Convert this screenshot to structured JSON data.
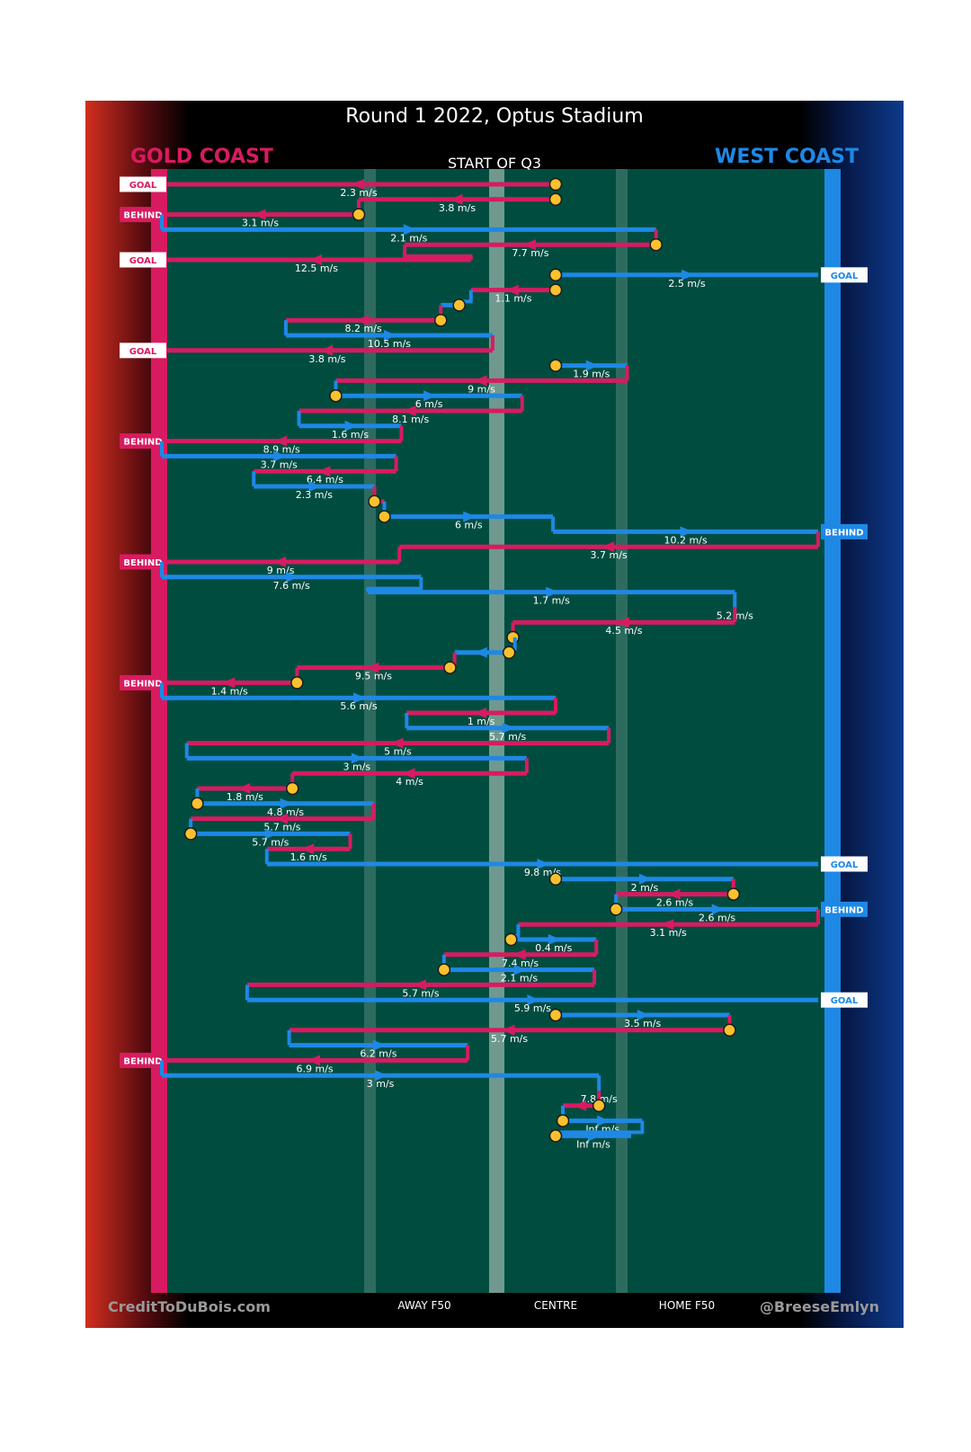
{
  "header": {
    "title": "Round 1 2022, Optus Stadium",
    "subtitle": "START OF Q3",
    "left_team": "GOLD COAST",
    "right_team": "WEST COAST"
  },
  "footer": {
    "credit": "CreditToDuBois.com",
    "handle": "@BreeseEmlyn"
  },
  "colors": {
    "gold_coast": "#d81b60",
    "west_coast": "#1e88e5",
    "field": "#004d40",
    "marker": "#fbc02d"
  },
  "chart_data": {
    "type": "line",
    "title": "Round 1 2022, Optus Stadium",
    "subtitle": "START OF Q3",
    "x_axis": {
      "range": [
        0,
        1
      ],
      "ticks": [
        {
          "value": 0.4,
          "label": "AWAY F50"
        },
        {
          "value": 0.6,
          "label": "CENTRE"
        },
        {
          "value": 0.8,
          "label": "HOME F50"
        }
      ]
    },
    "chains": [
      {
        "team": "GC",
        "x0": 0.6,
        "x1": 0.0,
        "label": "2.3 m/s",
        "start_marker": true,
        "result": "GOAL"
      },
      {
        "team": "GC",
        "x0": 0.6,
        "x1": 0.3,
        "label": "3.8 m/s",
        "start_marker": true
      },
      {
        "team": "GC",
        "x0": 0.3,
        "x1": 0.0,
        "label": "3.1 m/s",
        "start_marker": true,
        "result": "BEHIND"
      },
      {
        "team": "WC",
        "x0": 0.0,
        "x1": 0.753,
        "label": "2.1 m/s"
      },
      {
        "team": "GC",
        "x0": 0.753,
        "x1": 0.37,
        "label": "7.7 m/s",
        "start_marker": true
      },
      {
        "team": "GC",
        "x0": 0.471,
        "x1": 0.0,
        "label": "12.5 m/s",
        "result": "GOAL"
      },
      {
        "team": "WC",
        "x0": 0.6,
        "x1": 1.0,
        "label": "2.5 m/s",
        "start_marker": true,
        "result": "GOAL"
      },
      {
        "team": "GC",
        "x0": 0.6,
        "x1": 0.471,
        "label": "1.1 m/s",
        "start_marker": true
      },
      {
        "team": "WC",
        "x0": 0.453,
        "x1": 0.425,
        "label": "",
        "start_marker": true
      },
      {
        "team": "GC",
        "x0": 0.425,
        "x1": 0.189,
        "label": "8.2 m/s",
        "start_marker": true
      },
      {
        "team": "WC",
        "x0": 0.189,
        "x1": 0.504,
        "label": "10.5 m/s"
      },
      {
        "team": "GC",
        "x0": 0.504,
        "x1": 0.0,
        "label": "3.8 m/s",
        "result": "GOAL"
      },
      {
        "team": "WC",
        "x0": 0.6,
        "x1": 0.709,
        "label": "1.9 m/s",
        "start_marker": true
      },
      {
        "team": "GC",
        "x0": 0.709,
        "x1": 0.265,
        "label": "9 m/s"
      },
      {
        "team": "WC",
        "x0": 0.265,
        "x1": 0.549,
        "label": "6 m/s",
        "start_marker": true
      },
      {
        "team": "GC",
        "x0": 0.549,
        "x1": 0.209,
        "label": "8.1 m/s"
      },
      {
        "team": "WC",
        "x0": 0.209,
        "x1": 0.365,
        "label": "1.6 m/s"
      },
      {
        "team": "GC",
        "x0": 0.365,
        "x1": 0.0,
        "label": "8.9 m/s",
        "result": "BEHIND"
      },
      {
        "team": "WC",
        "x0": 0.0,
        "x1": 0.357,
        "label": "3.7 m/s"
      },
      {
        "team": "GC",
        "x0": 0.357,
        "x1": 0.14,
        "label": "6.4 m/s"
      },
      {
        "team": "WC",
        "x0": 0.14,
        "x1": 0.324,
        "label": "2.3 m/s"
      },
      {
        "team": "GC",
        "x0": 0.324,
        "x1": 0.339,
        "label": "",
        "start_marker": true
      },
      {
        "team": "WC",
        "x0": 0.339,
        "x1": 0.596,
        "label": "6 m/s",
        "start_marker": true
      },
      {
        "team": "WC",
        "x0": 0.596,
        "x1": 1.0,
        "label": "10.2 m/s",
        "result": "BEHIND"
      },
      {
        "team": "GC",
        "x0": 1.0,
        "x1": 0.362,
        "label": "3.7 m/s"
      },
      {
        "team": "GC",
        "x0": 0.362,
        "x1": 0.0,
        "label": "9 m/s",
        "result": "BEHIND"
      },
      {
        "team": "WC",
        "x0": 0.0,
        "x1": 0.395,
        "label": "7.6 m/s"
      },
      {
        "team": "WC",
        "x0": 0.314,
        "x1": 0.873,
        "label": "1.7 m/s"
      },
      {
        "team": "WC",
        "x0": 0.873,
        "x1": 0.873,
        "label": "5.2 m/s"
      },
      {
        "team": "GC",
        "x0": 0.873,
        "x1": 0.535,
        "label": "4.5 m/s"
      },
      {
        "team": "GC",
        "x0": 0.535,
        "x1": 0.538,
        "label": "",
        "start_marker": true
      },
      {
        "team": "WC",
        "x0": 0.529,
        "x1": 0.446,
        "label": "",
        "start_marker": true
      },
      {
        "team": "GC",
        "x0": 0.439,
        "x1": 0.206,
        "label": "9.5 m/s",
        "start_marker": true
      },
      {
        "team": "GC",
        "x0": 0.206,
        "x1": 0.0,
        "label": "1.4 m/s",
        "start_marker": true,
        "result": "BEHIND"
      },
      {
        "team": "WC",
        "x0": 0.0,
        "x1": 0.6,
        "label": "5.6 m/s"
      },
      {
        "team": "GC",
        "x0": 0.6,
        "x1": 0.373,
        "label": "1 m/s"
      },
      {
        "team": "WC",
        "x0": 0.373,
        "x1": 0.681,
        "label": "5.7 m/s"
      },
      {
        "team": "GC",
        "x0": 0.681,
        "x1": 0.038,
        "label": "5 m/s"
      },
      {
        "team": "WC",
        "x0": 0.038,
        "x1": 0.556,
        "label": "3 m/s"
      },
      {
        "team": "GC",
        "x0": 0.556,
        "x1": 0.199,
        "label": "4 m/s"
      },
      {
        "team": "GC",
        "x0": 0.199,
        "x1": 0.054,
        "label": "1.8 m/s",
        "start_marker": true
      },
      {
        "team": "WC",
        "x0": 0.054,
        "x1": 0.323,
        "label": "4.8 m/s",
        "start_marker": true
      },
      {
        "team": "GC",
        "x0": 0.323,
        "x1": 0.044,
        "label": "5.7 m/s"
      },
      {
        "team": "WC",
        "x0": 0.044,
        "x1": 0.287,
        "label": "5.7 m/s",
        "start_marker": true
      },
      {
        "team": "GC",
        "x0": 0.287,
        "x1": 0.16,
        "label": "1.6 m/s"
      },
      {
        "team": "WC",
        "x0": 0.16,
        "x1": 1.0,
        "label": "9.8 m/s",
        "result": "GOAL"
      },
      {
        "team": "WC",
        "x0": 0.6,
        "x1": 0.871,
        "label": "2 m/s",
        "start_marker": true
      },
      {
        "team": "GC",
        "x0": 0.871,
        "x1": 0.692,
        "label": "2.6 m/s",
        "start_marker": true
      },
      {
        "team": "WC",
        "x0": 0.692,
        "x1": 1.0,
        "label": "2.6 m/s",
        "start_marker": true,
        "result": "BEHIND"
      },
      {
        "team": "GC",
        "x0": 1.0,
        "x1": 0.543,
        "label": "3.1 m/s"
      },
      {
        "team": "WC",
        "x0": 0.532,
        "x1": 0.662,
        "label": "0.4 m/s",
        "start_marker": true
      },
      {
        "team": "GC",
        "x0": 0.662,
        "x1": 0.43,
        "label": "7.4 m/s"
      },
      {
        "team": "WC",
        "x0": 0.43,
        "x1": 0.659,
        "label": "2.1 m/s",
        "start_marker": true
      },
      {
        "team": "GC",
        "x0": 0.659,
        "x1": 0.13,
        "label": "5.7 m/s"
      },
      {
        "team": "WC",
        "x0": 0.13,
        "x1": 1.0,
        "label": "5.9 m/s",
        "result": "GOAL"
      },
      {
        "team": "WC",
        "x0": 0.6,
        "x1": 0.865,
        "label": "3.5 m/s",
        "start_marker": true
      },
      {
        "team": "GC",
        "x0": 0.865,
        "x1": 0.194,
        "label": "5.7 m/s",
        "start_marker": true
      },
      {
        "team": "WC",
        "x0": 0.194,
        "x1": 0.466,
        "label": "6.2 m/s"
      },
      {
        "team": "GC",
        "x0": 0.466,
        "x1": 0.0,
        "label": "6.9 m/s",
        "result": "BEHIND"
      },
      {
        "team": "WC",
        "x0": 0.0,
        "x1": 0.666,
        "label": "3 m/s"
      },
      {
        "team": "WC",
        "x0": 0.666,
        "x1": 0.666,
        "label": "7.8 m/s"
      },
      {
        "team": "GC",
        "x0": 0.666,
        "x1": 0.611,
        "label": "",
        "start_marker": true
      },
      {
        "team": "WC",
        "x0": 0.611,
        "x1": 0.732,
        "label": "Inf m/s",
        "start_marker": true
      },
      {
        "team": "WC",
        "x0": 0.6,
        "x1": 0.715,
        "label": "Inf m/s",
        "start_marker": true
      }
    ]
  }
}
